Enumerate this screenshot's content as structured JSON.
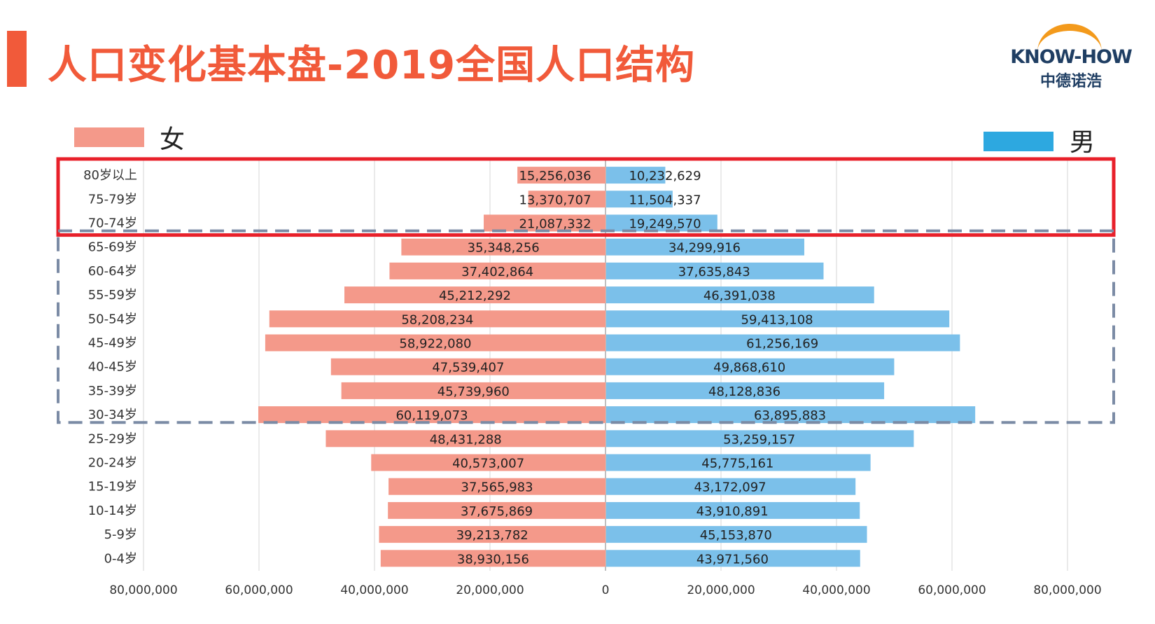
{
  "header": {
    "title": "人口变化基本盘-2019全国人口结构",
    "accent_color": "#F15A3A"
  },
  "logo": {
    "text_en": "KNOW-HOW",
    "text_cn": "中德诺浩",
    "arc_color": "#F39A1C",
    "text_color": "#1F3E63"
  },
  "legend": {
    "female": {
      "label": "女",
      "color": "#F4998A"
    },
    "male": {
      "label": "男",
      "color": "#2DA8E0"
    }
  },
  "chart_data": {
    "type": "bar",
    "orientation": "horizontal-population-pyramid",
    "categories": [
      "80岁以上",
      "75-79岁",
      "70-74岁",
      "65-69岁",
      "60-64岁",
      "55-59岁",
      "50-54岁",
      "45-49岁",
      "40-45岁",
      "35-39岁",
      "30-34岁",
      "25-29岁",
      "20-24岁",
      "15-19岁",
      "10-14岁",
      "5-9岁",
      "0-4岁"
    ],
    "series": [
      {
        "name": "女",
        "color": "#F4998A",
        "values": [
          15256036,
          13370707,
          21087332,
          35348256,
          37402864,
          45212292,
          58208234,
          58922080,
          47539407,
          45739960,
          60119073,
          48431288,
          40573007,
          37565983,
          37675869,
          39213782,
          38930156
        ],
        "labels": [
          "15,256,036",
          "13,370,707",
          "21,087,332",
          "35,348,256",
          "37,402,864",
          "45,212,292",
          "58,208,234",
          "58,922,080",
          "47,539,407",
          "45,739,960",
          "60,119,073",
          "48,431,288",
          "40,573,007",
          "37,565,983",
          "37,675,869",
          "39,213,782",
          "38,930,156"
        ]
      },
      {
        "name": "男",
        "color": "#7BC0EA",
        "values": [
          10232629,
          11504337,
          19249570,
          34299916,
          37635843,
          46391038,
          59413108,
          61256169,
          49868610,
          48128836,
          63895883,
          53259157,
          45775161,
          43172097,
          43910891,
          45153870,
          43971560
        ],
        "labels": [
          "10,232,629",
          "11,504,337",
          "19,249,570",
          "34,299,916",
          "37,635,843",
          "46,391,038",
          "59,413,108",
          "61,256,169",
          "49,868,610",
          "48,128,836",
          "63,895,883",
          "53,259,157",
          "45,775,161",
          "43,172,097",
          "43,910,891",
          "45,153,870",
          "43,971,560"
        ]
      }
    ],
    "xlim": [
      -80000000,
      80000000
    ],
    "xticks": [
      -80000000,
      -60000000,
      -40000000,
      -20000000,
      0,
      20000000,
      40000000,
      60000000,
      80000000
    ],
    "xtick_labels": [
      "80,000,000",
      "60,000,000",
      "40,000,000",
      "20,000,000",
      "0",
      "20,000,000",
      "40,000,000",
      "60,000,000",
      "80,000,000"
    ],
    "grid": true,
    "highlights": [
      {
        "style": "solid",
        "color": "#E8202A",
        "from_category": "80岁以上",
        "to_category": "70-74岁"
      },
      {
        "style": "dashed",
        "color": "#7B8BA5",
        "from_category": "65-69岁",
        "to_category": "30-34岁"
      }
    ]
  }
}
